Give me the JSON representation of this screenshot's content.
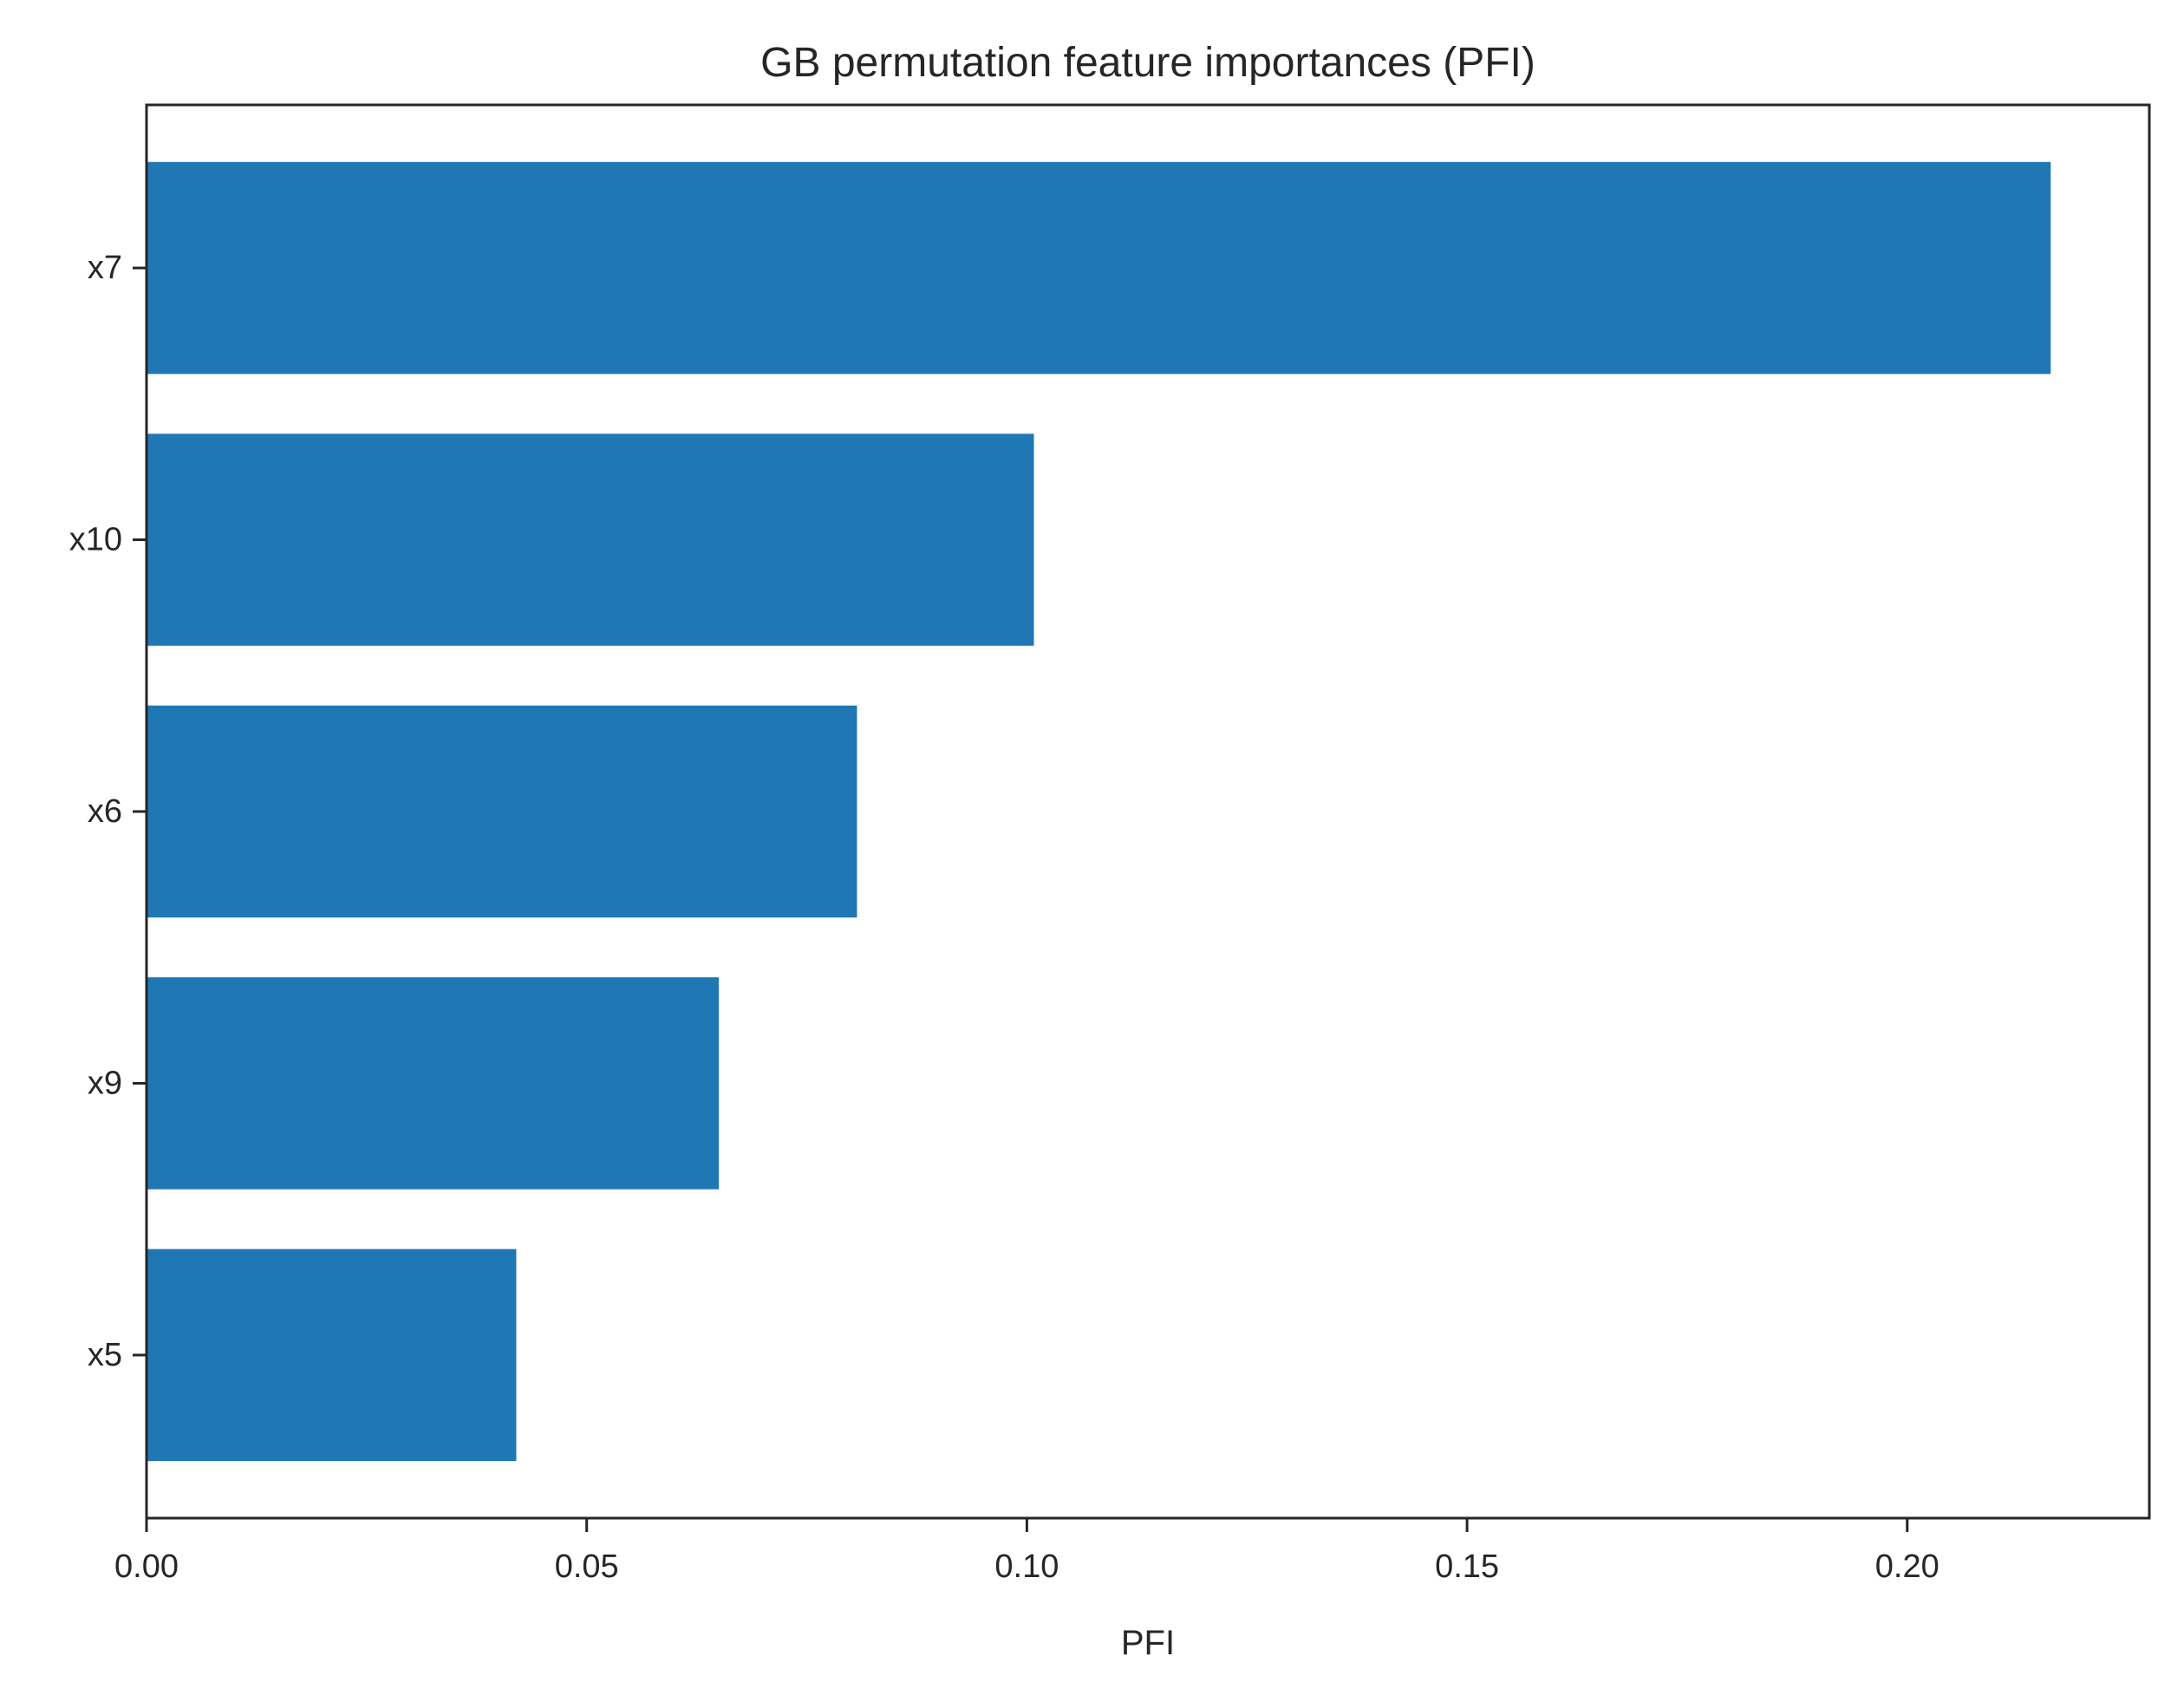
{
  "chart_data": {
    "type": "bar",
    "orientation": "horizontal",
    "title": "GB permutation feature importances (PFI)",
    "xlabel": "PFI",
    "ylabel": "",
    "categories": [
      "x7",
      "x10",
      "x6",
      "x9",
      "x5"
    ],
    "values": [
      0.2163,
      0.1008,
      0.0807,
      0.065,
      0.042
    ],
    "xlim": [
      0,
      0.2275
    ],
    "xticks": [
      0.0,
      0.05,
      0.1,
      0.15,
      0.2
    ],
    "xtick_labels": [
      "0.00",
      "0.05",
      "0.10",
      "0.15",
      "0.20"
    ],
    "grid": false,
    "legend": "none",
    "bar_color": "#1f77b4",
    "axis_color": "#262626"
  }
}
